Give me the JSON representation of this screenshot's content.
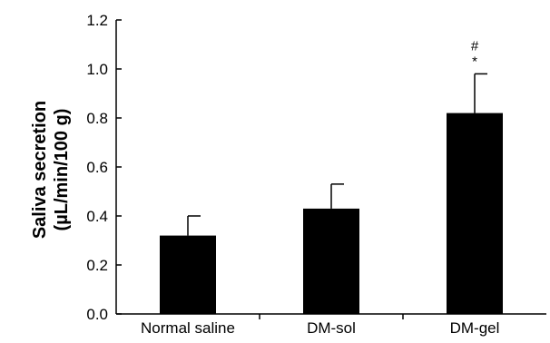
{
  "chart_data": {
    "type": "bar",
    "categories": [
      "Normal saline",
      "DM-sol",
      "DM-gel"
    ],
    "values": [
      0.32,
      0.43,
      0.82
    ],
    "errors": [
      0.08,
      0.1,
      0.16
    ],
    "annotations": [
      {
        "category": "DM-gel",
        "lines": [
          "#",
          "*"
        ]
      }
    ],
    "ylabel": [
      "Saliva secretion",
      "(µL/min/100 g)"
    ],
    "ylim": [
      0,
      1.2
    ],
    "yticks": [
      "0.0",
      "0.2",
      "0.4",
      "0.6",
      "0.8",
      "1.0",
      "1.2"
    ],
    "bar_color": "#000000",
    "grid": false
  }
}
